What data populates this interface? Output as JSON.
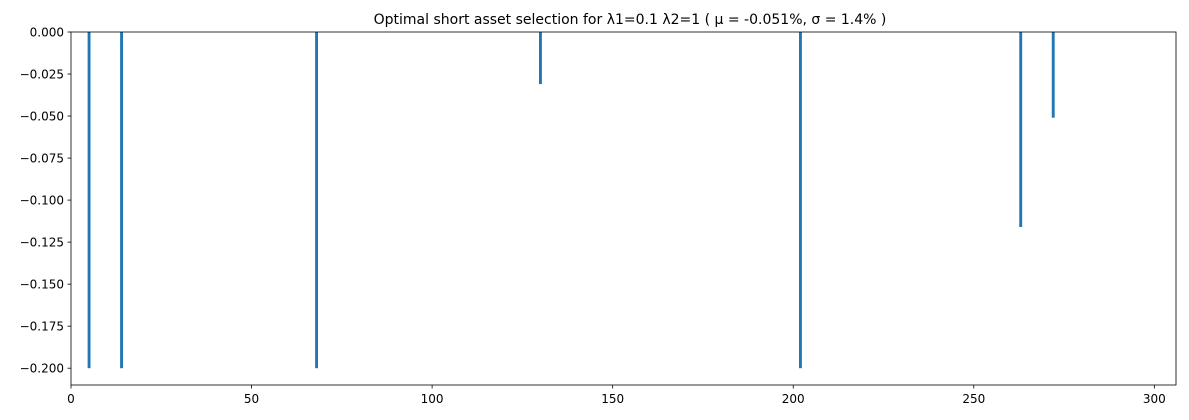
{
  "chart_data": {
    "type": "bar",
    "title": "Optimal short asset selection for λ1=0.1  λ2=1 ( μ = -0.051%, σ = 1.4% )",
    "xlabel": "",
    "ylabel": "",
    "x": [
      5,
      14,
      68,
      130,
      202,
      263,
      272
    ],
    "values": [
      -0.2,
      -0.2,
      -0.2,
      -0.031,
      -0.2,
      -0.116,
      -0.051
    ],
    "xlim": [
      0,
      306
    ],
    "ylim": [
      -0.21,
      0.0
    ],
    "xticks": [
      0,
      50,
      100,
      150,
      200,
      250,
      300
    ],
    "xtick_labels": [
      "0",
      "50",
      "100",
      "150",
      "200",
      "250",
      "300"
    ],
    "yticks": [
      0.0,
      -0.025,
      -0.05,
      -0.075,
      -0.1,
      -0.125,
      -0.15,
      -0.175,
      -0.2
    ],
    "ytick_labels": [
      "0.000",
      "−0.025",
      "−0.050",
      "−0.075",
      "−0.100",
      "−0.125",
      "−0.150",
      "−0.175",
      "−0.200"
    ],
    "grid": false,
    "legend": "none",
    "bar_color": "#1f77b4"
  }
}
